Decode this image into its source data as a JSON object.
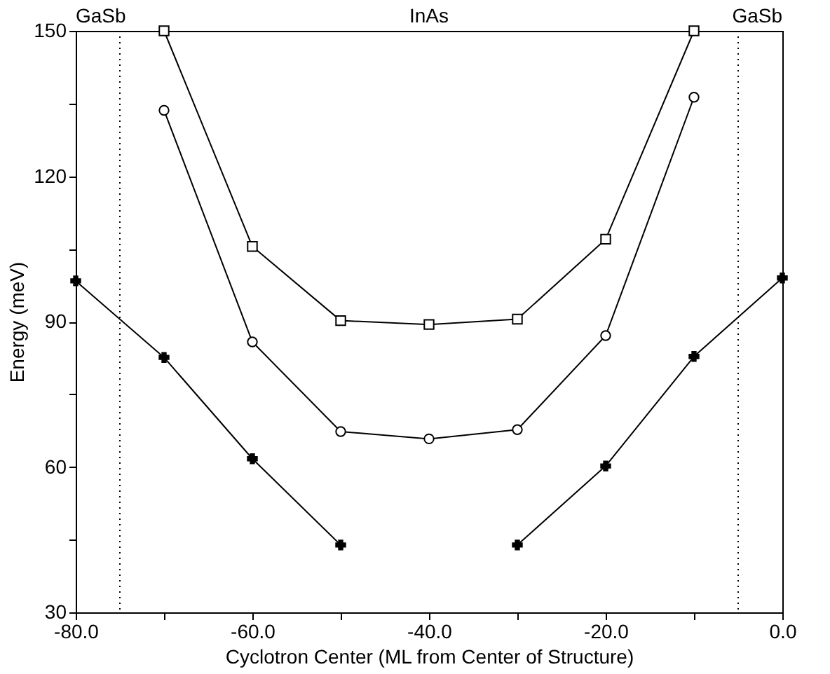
{
  "chart_data": {
    "type": "line",
    "xlabel": "Cyclotron Center (ML from Center of Structure)",
    "ylabel": "Energy (meV)",
    "x": [
      -80,
      -70,
      -60,
      -50,
      -40,
      -30,
      -20,
      -10,
      0
    ],
    "series": [
      {
        "color": "#000000",
        "marker": "square",
        "values": [
          null,
          150,
          105.5,
          90.2,
          89.4,
          90.5,
          107,
          150,
          null
        ]
      },
      {
        "color": "#000000",
        "marker": "circle",
        "values": [
          null,
          133.6,
          85.8,
          67.3,
          65.8,
          67.7,
          87.1,
          136.3,
          null
        ]
      },
      {
        "color": "#000000",
        "marker": "cross",
        "values": [
          98.4,
          82.6,
          61.7,
          43.9,
          null,
          43.9,
          60.2,
          82.8,
          99
        ]
      }
    ],
    "xlim": [
      -80,
      0
    ],
    "ylim": [
      30,
      150
    ],
    "xticks": [
      {
        "value": -80,
        "label": "-80.0"
      },
      {
        "value": -70,
        "label": null
      },
      {
        "value": -60,
        "label": "-60.0"
      },
      {
        "value": -50,
        "label": null
      },
      {
        "value": -40,
        "label": "-40.0"
      },
      {
        "value": -30,
        "label": null
      },
      {
        "value": -20,
        "label": "-20.0"
      },
      {
        "value": -10,
        "label": null
      },
      {
        "value": 0,
        "label": "0.0"
      }
    ],
    "yticks": [
      30,
      {
        "value": 45,
        "label": null
      },
      60,
      {
        "value": 75,
        "label": null
      },
      90,
      {
        "value": 105,
        "label": null
      },
      120,
      {
        "value": 135,
        "label": null
      },
      150
    ],
    "ref_lines": [
      {
        "axis": "x",
        "value": -75,
        "color": "#000000",
        "line_style": "dotted"
      },
      {
        "axis": "x",
        "value": -5,
        "color": "#000000",
        "line_style": "dotted"
      }
    ],
    "annotations": [
      "GaSb",
      "InAs",
      "GaSb"
    ],
    "grid": false,
    "line_style": "solid"
  }
}
